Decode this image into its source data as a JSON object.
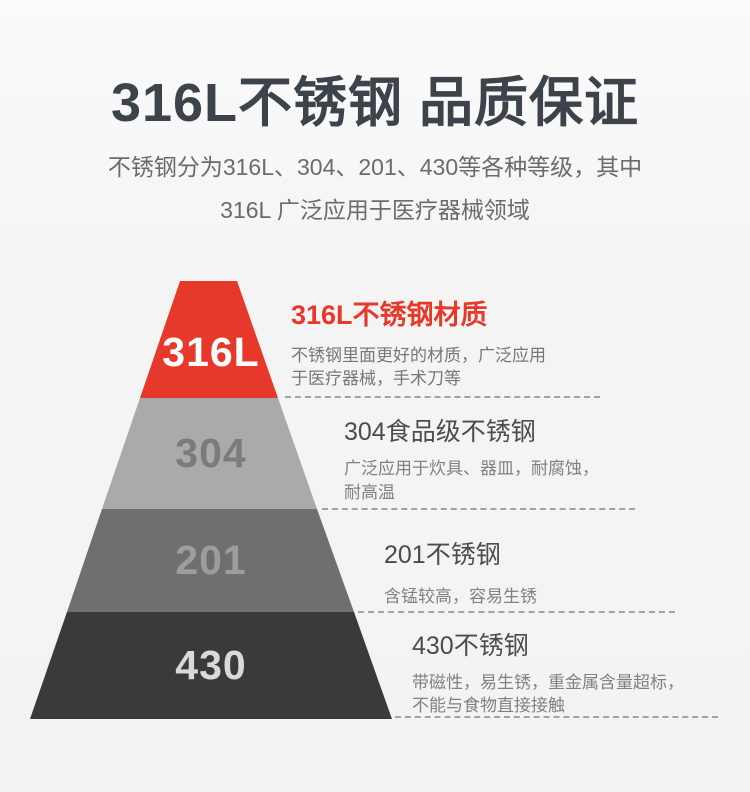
{
  "header": {
    "title": "316L不锈钢 品质保证",
    "subtitle_line1": "不锈钢分为316L、304、201、430等各种等级，其中",
    "subtitle_line2": "316L 广泛应用于医疗器械领域"
  },
  "colors": {
    "accent_red": "#e7392b",
    "level_304_fill": "#aaaaaa",
    "level_201_fill": "#6f6f6f",
    "level_430_fill": "#3a3a3a",
    "title_text": "#3d434a",
    "body_text": "#818181",
    "dashed_line": "#a3a3a3",
    "background": "#f4f4f4"
  },
  "pyramid": {
    "levels": [
      {
        "label": "316L",
        "fill": "#e7392b",
        "label_color": "#ffffff",
        "heading": "316L不锈钢材质",
        "desc_line1": "不锈钢里面更好的材质，广泛应用",
        "desc_line2": "于医疗器械，手术刀等"
      },
      {
        "label": "304",
        "fill": "#aaaaaa",
        "label_color": "#7b7b7b",
        "heading": "304食品级不锈钢",
        "desc_line1": "广泛应用于炊具、器皿，耐腐蚀，",
        "desc_line2": "耐高温"
      },
      {
        "label": "201",
        "fill": "#6f6f6f",
        "label_color": "#9d9d9d",
        "heading": "201不锈钢",
        "desc_line1": "含锰较高，容易生锈",
        "desc_line2": ""
      },
      {
        "label": "430",
        "fill": "#3a3a3a",
        "label_color": "#d9d9d9",
        "heading": "430不锈钢",
        "desc_line1": "带磁性，易生锈，重金属含量超标，",
        "desc_line2": "不能与食物直接接触"
      }
    ]
  }
}
